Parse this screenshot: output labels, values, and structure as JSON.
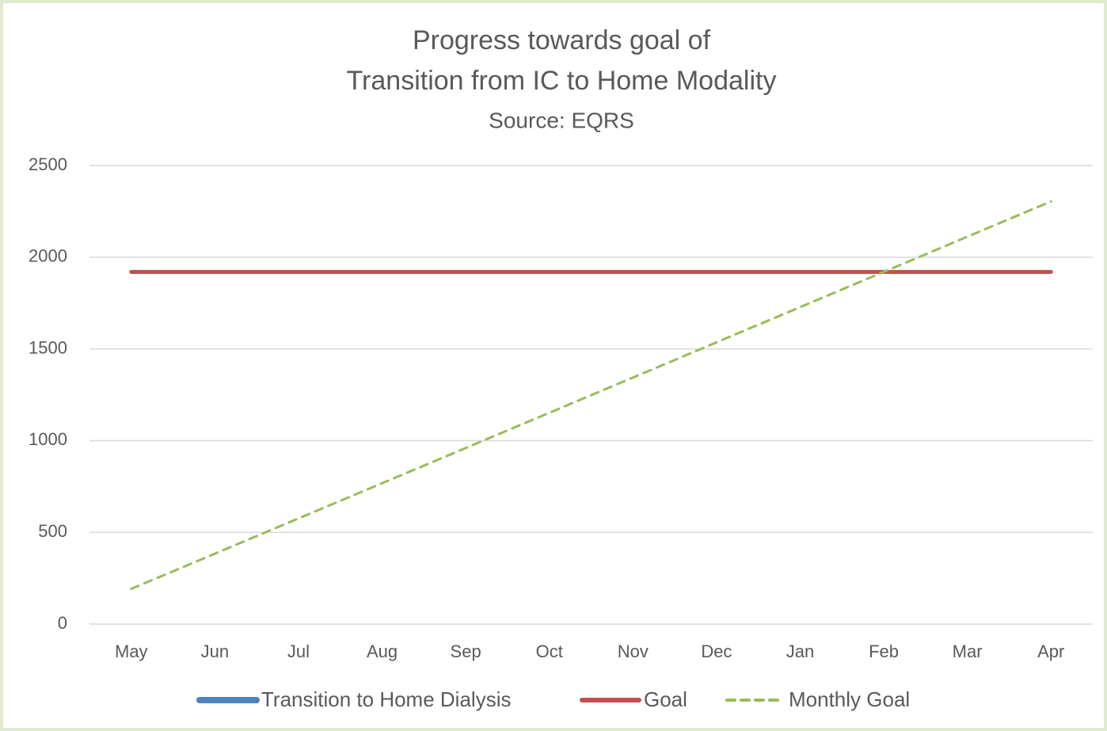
{
  "chart_data": {
    "type": "line",
    "title": "Progress towards goal of",
    "title_line2": "Transition from IC to Home Modality",
    "subtitle": "Source: EQRS",
    "categories": [
      "May",
      "Jun",
      "Jul",
      "Aug",
      "Sep",
      "Oct",
      "Nov",
      "Dec",
      "Jan",
      "Feb",
      "Mar",
      "Apr"
    ],
    "series": [
      {
        "name": "Transition to Home Dialysis",
        "color": "#4f81bd",
        "line_style": "solid",
        "values": [
          null,
          null,
          null,
          null,
          null,
          null,
          null,
          null,
          null,
          null,
          null,
          null
        ]
      },
      {
        "name": "Goal",
        "color": "#c0504d",
        "line_style": "solid",
        "values": [
          1920,
          1920,
          1920,
          1920,
          1920,
          1920,
          1920,
          1920,
          1920,
          1920,
          1920,
          1920
        ]
      },
      {
        "name": "Monthly Goal",
        "color": "#9bbb59",
        "line_style": "dashed",
        "values": [
          192,
          384,
          576,
          768,
          960,
          1152,
          1344,
          1536,
          1728,
          1920,
          2112,
          2304
        ]
      }
    ],
    "ylim": [
      0,
      2500
    ],
    "yticks": [
      0,
      500,
      1000,
      1500,
      2000,
      2500
    ],
    "grid": true,
    "legend": "bottom"
  }
}
